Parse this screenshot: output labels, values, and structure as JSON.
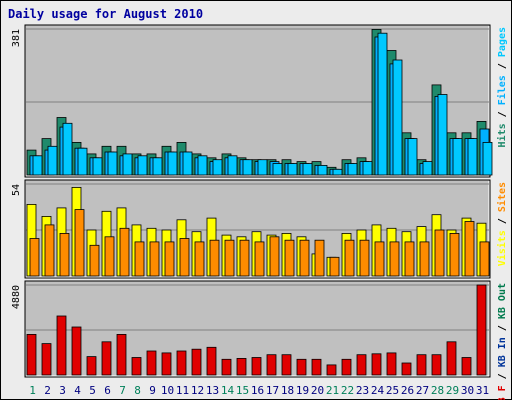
{
  "chart_data": {
    "type": "bar",
    "title": "Daily usage for August 2010",
    "categories": [
      "1",
      "2",
      "3",
      "4",
      "5",
      "6",
      "7",
      "8",
      "9",
      "10",
      "11",
      "12",
      "13",
      "14",
      "15",
      "16",
      "17",
      "18",
      "19",
      "20",
      "21",
      "22",
      "23",
      "24",
      "25",
      "26",
      "27",
      "28",
      "29",
      "30",
      "31"
    ],
    "weekend_days": [
      "1",
      "7",
      "8",
      "14",
      "15",
      "21",
      "22",
      "28",
      "29"
    ],
    "colors": {
      "title": "#0000a0",
      "frame_bg": "#ececec",
      "plot_bg": "#c0c0c0",
      "hits": "#1f8a6b",
      "files": "#00b0ff",
      "pages": "#00c8ff",
      "visits": "#ffff00",
      "sites": "#ff8c00",
      "kb_f": "#e00000",
      "kb_in": "#003399",
      "kb_out": "#007a4d",
      "weekday_label": "#000080",
      "weekend_label": "#00805a"
    },
    "panels": [
      {
        "id": "hits-files-pages",
        "max_label": "381",
        "ylim": [
          0,
          381
        ],
        "legend": [
          {
            "label": "Hits",
            "color_key": "hits"
          },
          {
            "label": "Files",
            "color_key": "files"
          },
          {
            "label": "Pages",
            "color_key": "pages"
          }
        ],
        "series": [
          {
            "name": "Hits",
            "color_key": "hits",
            "values": [
              65,
              95,
              150,
              85,
              55,
              75,
              75,
              55,
              55,
              75,
              85,
              55,
              45,
              55,
              45,
              40,
              40,
              40,
              35,
              35,
              20,
              40,
              45,
              380,
              325,
              110,
              40,
              235,
              110,
              110,
              140
            ]
          },
          {
            "name": "Files",
            "color_key": "files",
            "values": [
              50,
              65,
              125,
              70,
              45,
              60,
              50,
              45,
              45,
              60,
              60,
              45,
              35,
              45,
              40,
              35,
              35,
              30,
              30,
              25,
              15,
              30,
              35,
              360,
              290,
              95,
              30,
              205,
              95,
              95,
              120
            ]
          },
          {
            "name": "Pages",
            "color_key": "pages",
            "values": [
              50,
              75,
              135,
              70,
              45,
              60,
              55,
              50,
              45,
              60,
              60,
              50,
              40,
              50,
              40,
              40,
              30,
              30,
              30,
              25,
              15,
              30,
              35,
              370,
              300,
              95,
              35,
              210,
              95,
              95,
              85
            ]
          }
        ]
      },
      {
        "id": "visits-sites",
        "max_label": "54",
        "ylim": [
          0,
          54
        ],
        "legend": [
          {
            "label": "Visits",
            "color_key": "visits"
          },
          {
            "label": "Sites",
            "color_key": "sites"
          }
        ],
        "series": [
          {
            "name": "Visits",
            "color_key": "visits",
            "values": [
              42,
              35,
              40,
              52,
              27,
              38,
              40,
              30,
              28,
              27,
              33,
              26,
              34,
              24,
              23,
              26,
              24,
              25,
              23,
              13,
              11,
              25,
              27,
              30,
              28,
              26,
              29,
              36,
              27,
              34,
              31
            ]
          },
          {
            "name": "Sites",
            "color_key": "sites",
            "values": [
              22,
              30,
              25,
              39,
              18,
              23,
              28,
              20,
              20,
              20,
              22,
              20,
              21,
              21,
              21,
              20,
              23,
              21,
              21,
              21,
              11,
              21,
              21,
              20,
              20,
              20,
              20,
              27,
              25,
              32,
              20
            ]
          }
        ]
      },
      {
        "id": "kbytes",
        "max_label": "4880",
        "ylim": [
          0,
          4880
        ],
        "legend": [
          {
            "label": "KB F",
            "color_key": "kb_f"
          },
          {
            "label": "KB In",
            "color_key": "kb_in"
          },
          {
            "label": "KB Out",
            "color_key": "kb_out"
          }
        ],
        "series": [
          {
            "name": "KB F",
            "color_key": "kb_f",
            "values": [
              2200,
              1700,
              3200,
              2600,
              1000,
              1800,
              2200,
              950,
              1300,
              1200,
              1300,
              1400,
              1500,
              850,
              900,
              950,
              1100,
              1100,
              850,
              850,
              550,
              850,
              1100,
              1150,
              1200,
              650,
              1100,
              1100,
              1800,
              950,
              4880
            ]
          }
        ]
      }
    ]
  }
}
